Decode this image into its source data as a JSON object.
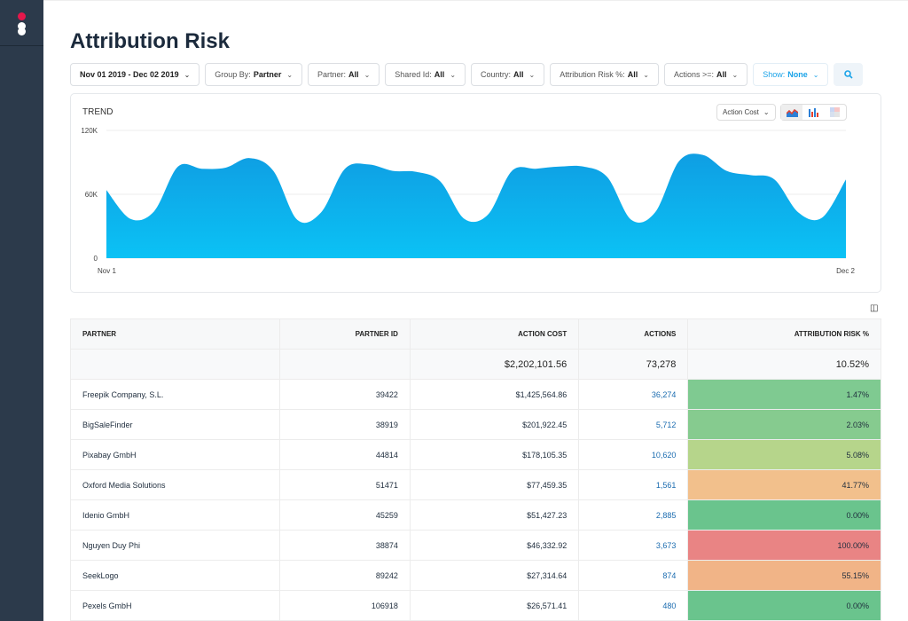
{
  "page": {
    "title": "Attribution Risk"
  },
  "filters": [
    {
      "label": "",
      "value": "Nov 01 2019 - Dec 02 2019"
    },
    {
      "label": "Group By: ",
      "value": "Partner"
    },
    {
      "label": "Partner: ",
      "value": "All"
    },
    {
      "label": "Shared Id: ",
      "value": "All"
    },
    {
      "label": "Country: ",
      "value": "All"
    },
    {
      "label": "Attribution Risk %: ",
      "value": "All"
    },
    {
      "label": "Actions >=: ",
      "value": "All"
    },
    {
      "label": "Show: ",
      "value": "None"
    }
  ],
  "trend": {
    "title": "TREND",
    "metric": "Action Cost",
    "chart_types": [
      "area-chart-icon",
      "bar-chart-icon",
      "heatmap-icon"
    ]
  },
  "chart_data": {
    "type": "area",
    "xlabel": "",
    "ylabel": "",
    "x_ticks": [
      "Nov 1",
      "Dec 2"
    ],
    "y_ticks": [
      "0",
      "60K",
      "120K"
    ],
    "ylim": [
      0,
      120000
    ],
    "grid": true,
    "color": "#12a9ea",
    "x": [
      "Nov 1",
      "Nov 2",
      "Nov 3",
      "Nov 4",
      "Nov 5",
      "Nov 6",
      "Nov 7",
      "Nov 8",
      "Nov 9",
      "Nov 10",
      "Nov 11",
      "Nov 12",
      "Nov 13",
      "Nov 14",
      "Nov 15",
      "Nov 16",
      "Nov 17",
      "Nov 18",
      "Nov 19",
      "Nov 20",
      "Nov 21",
      "Nov 22",
      "Nov 23",
      "Nov 24",
      "Nov 25",
      "Nov 26",
      "Nov 27",
      "Nov 28",
      "Nov 29",
      "Nov 30",
      "Dec 1",
      "Dec 2"
    ],
    "values": [
      64000,
      37000,
      44000,
      86000,
      84000,
      85000,
      94000,
      82000,
      36000,
      43000,
      84000,
      88000,
      82000,
      81000,
      72000,
      37000,
      41000,
      82000,
      84000,
      86000,
      86000,
      76000,
      36000,
      43000,
      91000,
      97000,
      82000,
      78000,
      74000,
      43000,
      38000,
      74000
    ]
  },
  "table": {
    "columns": [
      "PARTNER",
      "PARTNER ID",
      "ACTION COST",
      "ACTIONS",
      "ATTRIBUTION RISK %"
    ],
    "totals": {
      "cost": "$2,202,101.56",
      "actions": "73,278",
      "risk": "10.52%"
    },
    "rows": [
      {
        "partner": "Freepik Company, S.L.",
        "id": "39422",
        "cost": "$1,425,564.86",
        "actions": "36,274",
        "risk": "1.47%",
        "color": "#7fca91"
      },
      {
        "partner": "BigSaleFinder",
        "id": "38919",
        "cost": "$201,922.45",
        "actions": "5,712",
        "risk": "2.03%",
        "color": "#86cb8f"
      },
      {
        "partner": "Pixabay GmbH",
        "id": "44814",
        "cost": "$178,105.35",
        "actions": "10,620",
        "risk": "5.08%",
        "color": "#b6d58b"
      },
      {
        "partner": "Oxford Media Solutions",
        "id": "51471",
        "cost": "$77,459.35",
        "actions": "1,561",
        "risk": "41.77%",
        "color": "#f2c08c"
      },
      {
        "partner": "Idenio GmbH",
        "id": "45259",
        "cost": "$51,427.23",
        "actions": "2,885",
        "risk": "0.00%",
        "color": "#6ac48d"
      },
      {
        "partner": "Nguyen Duy Phi",
        "id": "38874",
        "cost": "$46,332.92",
        "actions": "3,673",
        "risk": "100.00%",
        "color": "#e98484"
      },
      {
        "partner": "SeekLogo",
        "id": "89242",
        "cost": "$27,314.64",
        "actions": "874",
        "risk": "55.15%",
        "color": "#f1b487"
      },
      {
        "partner": "Pexels GmbH",
        "id": "106918",
        "cost": "$26,571.41",
        "actions": "480",
        "risk": "0.00%",
        "color": "#6ac48d"
      }
    ]
  }
}
